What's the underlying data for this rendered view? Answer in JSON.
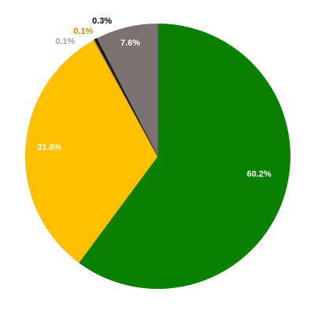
{
  "chart_data": {
    "type": "pie",
    "start_angle_deg": 0,
    "direction": "clockwise",
    "slices": [
      {
        "value": 60.2,
        "label": "60.2%",
        "color": "#0a8000",
        "label_color": "#ffffff"
      },
      {
        "value": 31.8,
        "label": "31.8%",
        "color": "#ffc000",
        "label_color": "#ffffff"
      },
      {
        "value": 0.1,
        "label": "0.1%",
        "color": "#a5a5a5",
        "label_color": "#a5a5a5"
      },
      {
        "value": 0.1,
        "label": "0.1%",
        "color": "#c98a00",
        "label_color": "#c98a00"
      },
      {
        "value": 0.3,
        "label": "0.3%",
        "color": "#1a1a1a",
        "label_color": "#000000"
      },
      {
        "value": 7.6,
        "label": "7.6%",
        "color": "#7a7272",
        "label_color": "#ffffff"
      }
    ]
  }
}
